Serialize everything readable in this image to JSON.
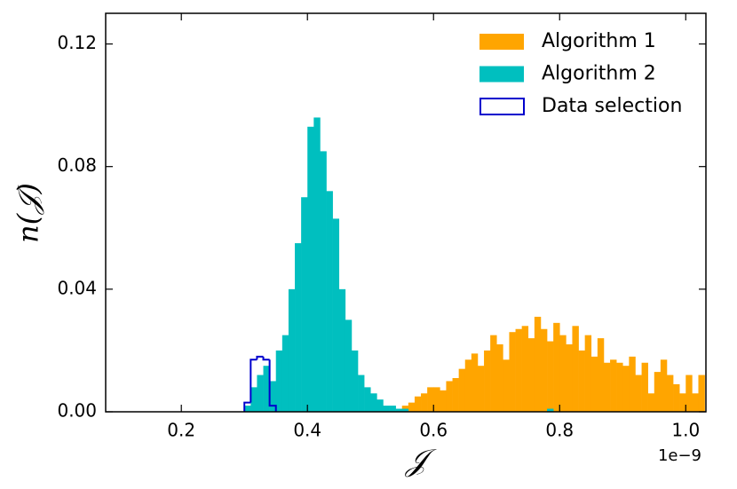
{
  "chart_data": {
    "type": "histogram",
    "x_label": "𝒥",
    "y_label": "n(𝒥)",
    "x_offset_label": "1e−9",
    "xlim": [
      0.08,
      1.032
    ],
    "ylim": [
      0,
      0.13
    ],
    "xticks": [
      0.2,
      0.4,
      0.6,
      0.8,
      {
        "value": 1.0,
        "label": "1.0"
      }
    ],
    "yticks": [
      {
        "value": 0,
        "label": "0.00"
      },
      0.04,
      0.08,
      0.12
    ],
    "legend_position": "upper right",
    "bins": [
      0.3,
      0.31,
      0.32,
      0.33,
      0.34,
      0.35,
      0.36,
      0.37,
      0.38,
      0.39,
      0.4,
      0.41,
      0.42,
      0.43,
      0.44,
      0.45,
      0.46,
      0.47,
      0.48,
      0.49,
      0.5,
      0.51,
      0.52,
      0.53,
      0.54,
      0.55,
      0.56,
      0.57,
      0.58,
      0.59,
      0.6,
      0.61,
      0.62,
      0.63,
      0.64,
      0.65,
      0.66,
      0.67,
      0.68,
      0.69,
      0.7,
      0.71,
      0.72,
      0.73,
      0.74,
      0.75,
      0.76,
      0.77,
      0.78,
      0.79,
      0.8,
      0.81,
      0.82,
      0.83,
      0.84,
      0.85,
      0.86,
      0.87,
      0.88,
      0.89,
      0.9,
      0.91,
      0.92,
      0.93,
      0.94,
      0.95,
      0.96,
      0.97,
      0.98,
      0.99,
      1.0,
      1.01,
      1.02,
      1.03
    ],
    "series": [
      {
        "name": "Algorithm 1",
        "color": "#ffa500",
        "style": "filled",
        "values": [
          0,
          0,
          0,
          0,
          0,
          0,
          0,
          0,
          0,
          0,
          0,
          0,
          0,
          0,
          0,
          0,
          0,
          0,
          0,
          0,
          0,
          0,
          0,
          0,
          0,
          0.002,
          0.003,
          0.005,
          0.006,
          0.008,
          0.008,
          0.007,
          0.01,
          0.011,
          0.014,
          0.017,
          0.019,
          0.015,
          0.02,
          0.025,
          0.022,
          0.017,
          0.026,
          0.027,
          0.028,
          0.024,
          0.031,
          0.027,
          0.023,
          0.029,
          0.025,
          0.022,
          0.028,
          0.02,
          0.025,
          0.018,
          0.024,
          0.016,
          0.017,
          0.016,
          0.015,
          0.018,
          0.012,
          0.016,
          0.006,
          0.013,
          0.017,
          0.012,
          0.009,
          0.006,
          0.012,
          0.006,
          0.012
        ]
      },
      {
        "name": "Algorithm 2",
        "color": "#00bfbf",
        "style": "filled",
        "values": [
          0.002,
          0.008,
          0.012,
          0.015,
          0.01,
          0.02,
          0.025,
          0.04,
          0.055,
          0.07,
          0.093,
          0.096,
          0.085,
          0.072,
          0.063,
          0.04,
          0.03,
          0.02,
          0.012,
          0.008,
          0.006,
          0.004,
          0.002,
          0.002,
          0.001,
          0.001,
          0,
          0,
          0,
          0,
          0,
          0,
          0,
          0,
          0,
          0,
          0,
          0,
          0,
          0,
          0,
          0,
          0,
          0,
          0,
          0,
          0,
          0,
          0.001,
          0,
          0,
          0,
          0,
          0,
          0,
          0,
          0,
          0,
          0,
          0,
          0,
          0,
          0,
          0,
          0,
          0,
          0,
          0,
          0,
          0,
          0,
          0,
          0
        ]
      },
      {
        "name": "Data selection",
        "color": "#0000cd",
        "style": "step",
        "bins": [
          0.3,
          0.31,
          0.32,
          0.33,
          0.34,
          0.35
        ],
        "values": [
          0.003,
          0.017,
          0.018,
          0.017,
          0.002
        ]
      }
    ]
  }
}
